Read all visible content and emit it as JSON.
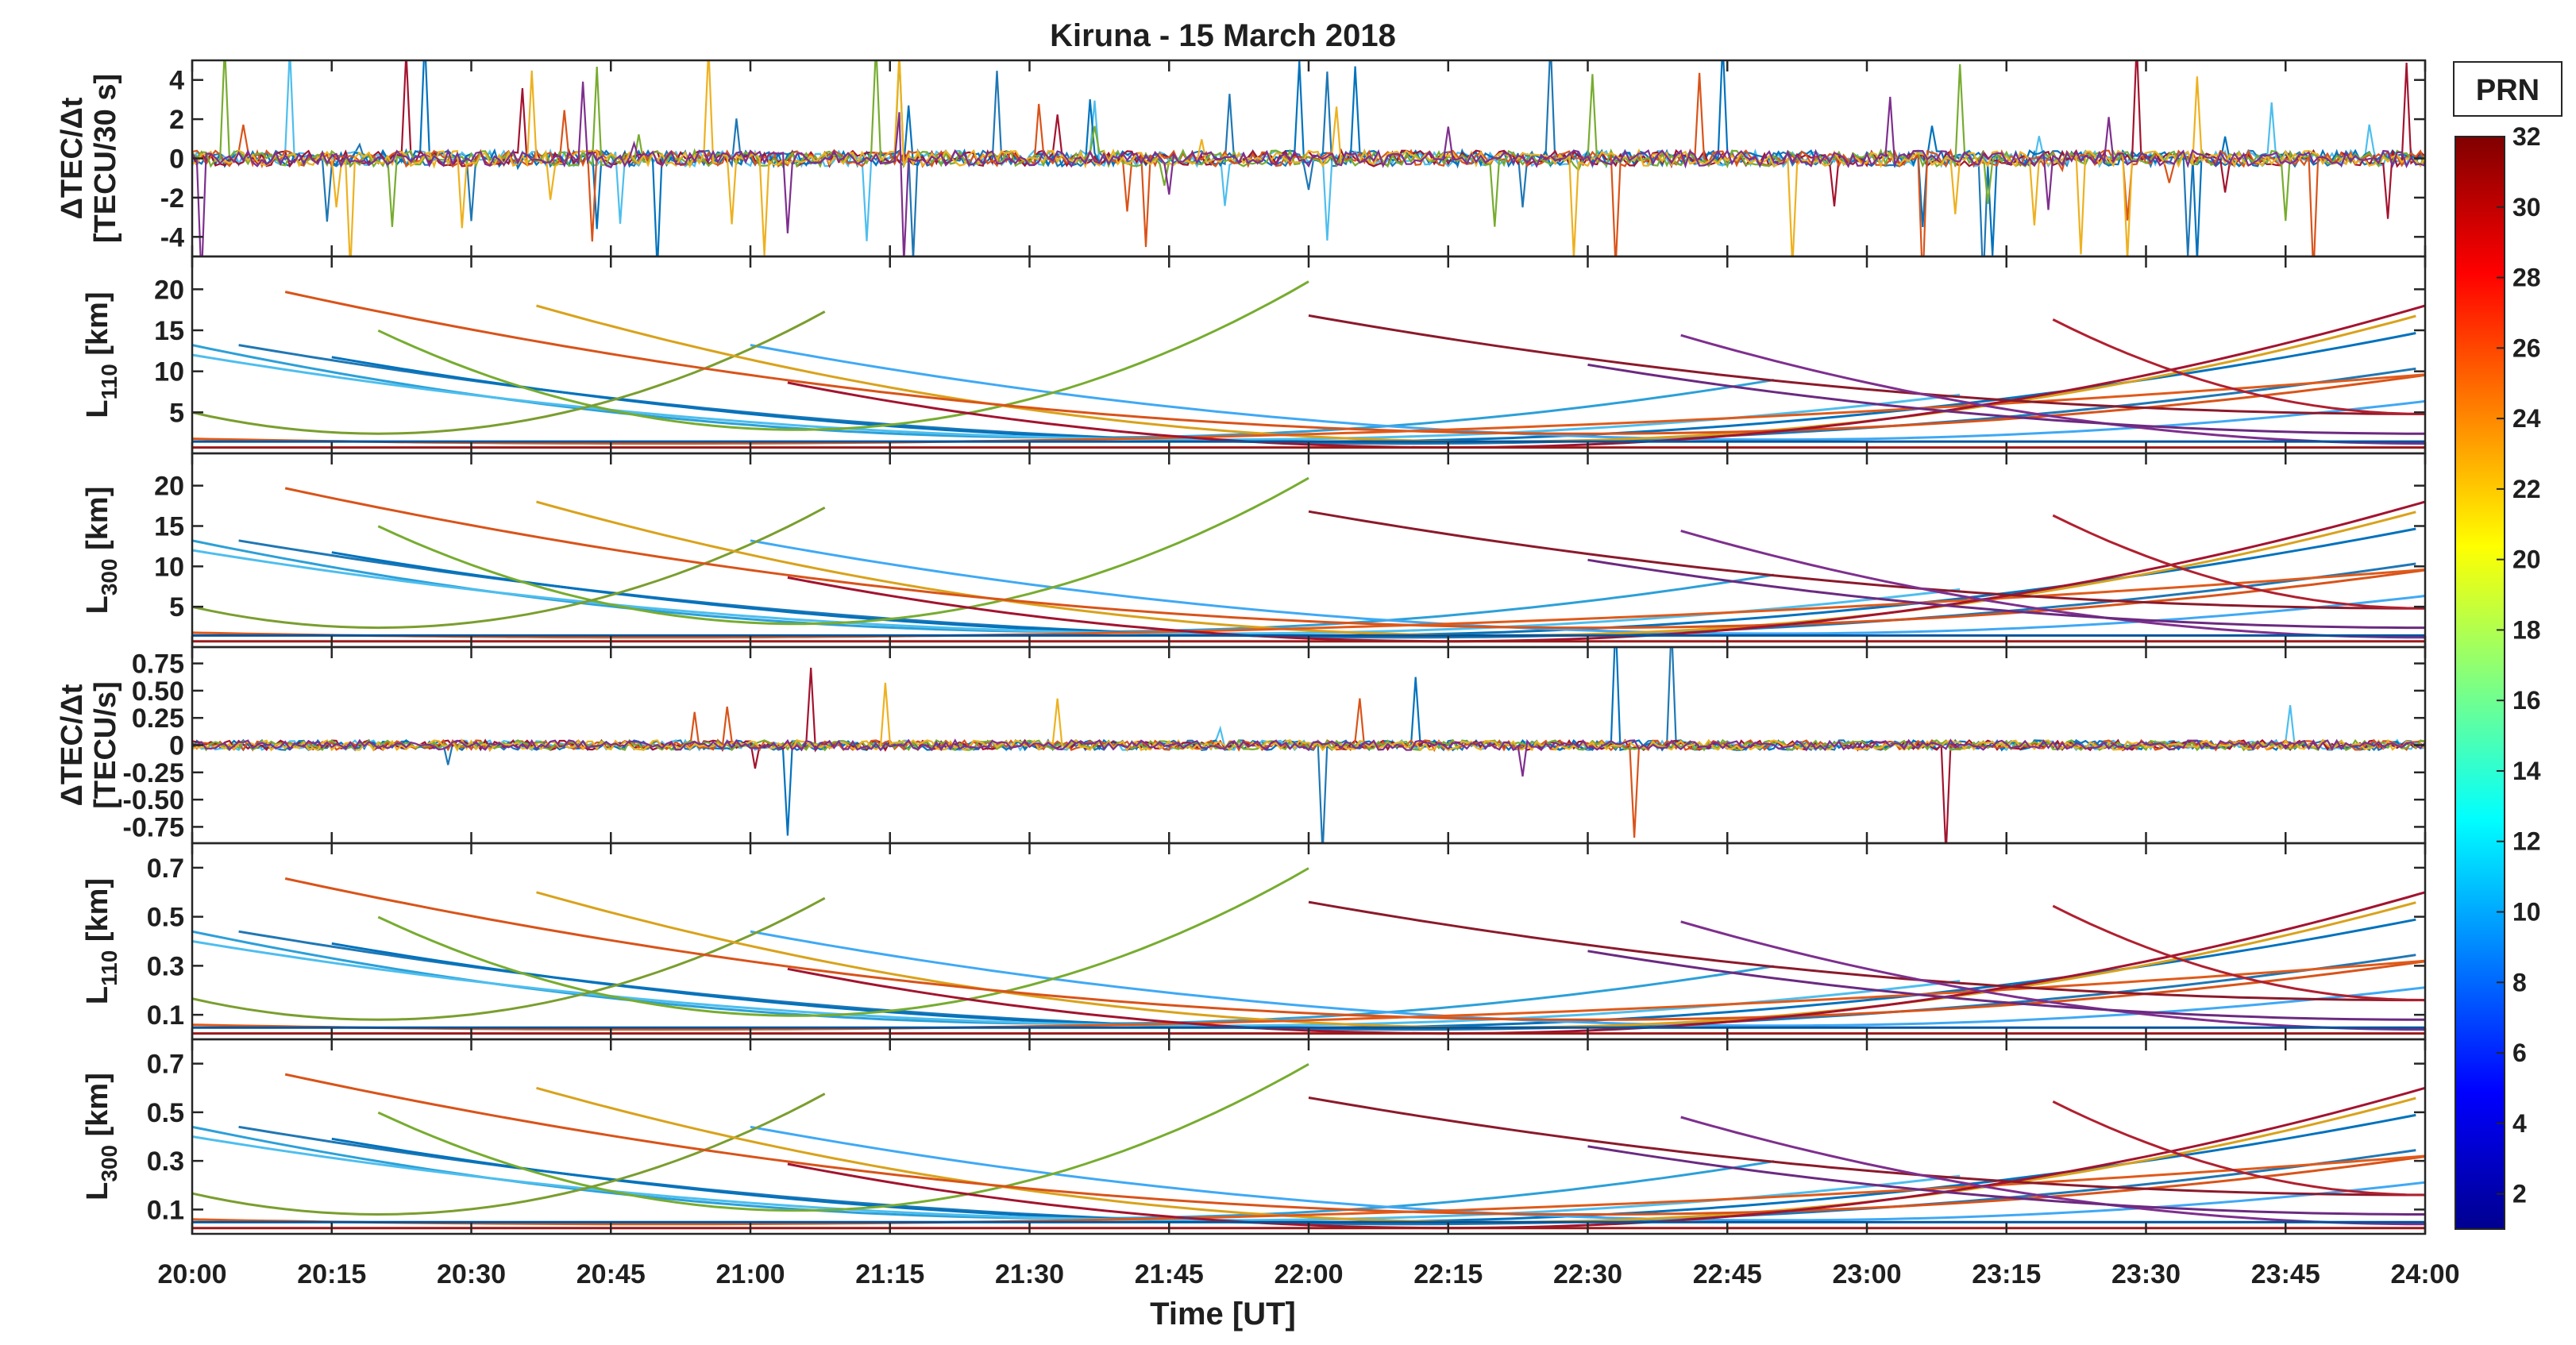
{
  "chart_data": {
    "type": "line",
    "title": "Kiruna - 15 March 2018",
    "xlabel": "Time [UT]",
    "x_ticks": [
      "20:00",
      "20:15",
      "20:30",
      "20:45",
      "21:00",
      "21:15",
      "21:30",
      "21:45",
      "22:00",
      "22:15",
      "22:30",
      "22:45",
      "23:00",
      "23:15",
      "23:30",
      "23:45",
      "24:00"
    ],
    "xlim": [
      0,
      240
    ],
    "x_units": "minutes after 20:00 UT",
    "colorbar": {
      "label": "PRN",
      "range": [
        1,
        32
      ],
      "ticks": [
        "2",
        "4",
        "6",
        "8",
        "10",
        "12",
        "14",
        "16",
        "18",
        "20",
        "22",
        "24",
        "26",
        "28",
        "30",
        "32"
      ],
      "colormap": [
        "#00008f",
        "#0000ff",
        "#0080ff",
        "#00ffff",
        "#80ff80",
        "#ffff00",
        "#ff8000",
        "#ff0000",
        "#800000"
      ]
    },
    "panels": [
      {
        "id": "dtec30",
        "ylabel": [
          "ΔTEC/Δt",
          "[TECU/30 s]"
        ],
        "ylim": [
          -5,
          5
        ],
        "yticks": [
          "4",
          "2",
          "0",
          "-2",
          "-4"
        ],
        "ytick_values": [
          4,
          2,
          0,
          -2,
          -4
        ],
        "kind": "noise"
      },
      {
        "id": "l110_30",
        "ylabel": [
          "L110 [km]"
        ],
        "ylabel_base": "L",
        "ylabel_sub": "110",
        "ylabel_unit": "[km]",
        "ylim": [
          0,
          24
        ],
        "yticks": [
          "20",
          "15",
          "10",
          "5"
        ],
        "ytick_values": [
          20,
          15,
          10,
          5
        ],
        "kind": "arcs"
      },
      {
        "id": "l300_30",
        "ylabel": [
          "L300 [km]"
        ],
        "ylabel_base": "L",
        "ylabel_sub": "300",
        "ylabel_unit": "[km]",
        "ylim": [
          0,
          24
        ],
        "yticks": [
          "20",
          "15",
          "10",
          "5"
        ],
        "ytick_values": [
          20,
          15,
          10,
          5
        ],
        "kind": "arcs"
      },
      {
        "id": "dtec1",
        "ylabel": [
          "ΔTEC/Δt",
          "[TECU/s]"
        ],
        "ylim": [
          -0.9,
          0.9
        ],
        "yticks": [
          "0.75",
          "0.50",
          "0.25",
          "0",
          "-0.25",
          "-0.50",
          "-0.75"
        ],
        "ytick_values": [
          0.75,
          0.5,
          0.25,
          0,
          -0.25,
          -0.5,
          -0.75
        ],
        "kind": "noise"
      },
      {
        "id": "l110_1",
        "ylabel": [
          "L110 [km]"
        ],
        "ylabel_base": "L",
        "ylabel_sub": "110",
        "ylabel_unit": "[km]",
        "ylim": [
          0,
          0.8
        ],
        "yticks": [
          "0.7",
          "0.5",
          "0.3",
          "0.1"
        ],
        "ytick_values": [
          0.7,
          0.5,
          0.3,
          0.1
        ],
        "kind": "arcs"
      },
      {
        "id": "l300_1",
        "ylabel": [
          "L300 [km]"
        ],
        "ylabel_base": "L",
        "ylabel_sub": "300",
        "ylabel_unit": "[km]",
        "ylim": [
          0,
          0.8
        ],
        "yticks": [
          "0.7",
          "0.5",
          "0.3",
          "0.1"
        ],
        "ytick_values": [
          0.7,
          0.5,
          0.3,
          0.1
        ],
        "kind": "arcs"
      }
    ],
    "arc_series": [
      {
        "prn": 2,
        "color": "#1f77b4",
        "shape": "parabola",
        "t_start": 5,
        "t_end": 240,
        "t_min": 130,
        "y_min_frac": 0.05,
        "y_max_frac": 0.55
      },
      {
        "prn": 5,
        "color": "#2ca0d8",
        "shape": "parabola",
        "t_start": 0,
        "t_end": 170,
        "t_min": 95,
        "y_min_frac": 0.08,
        "y_max_frac": 0.55
      },
      {
        "prn": 8,
        "color": "#0072bd",
        "shape": "parabola",
        "t_start": 15,
        "t_end": 240,
        "t_min": 120,
        "y_min_frac": 0.06,
        "y_max_frac": 0.62
      },
      {
        "prn": 12,
        "color": "#4dbeee",
        "shape": "parabola",
        "t_start": 0,
        "t_end": 190,
        "t_min": 110,
        "y_min_frac": 0.07,
        "y_max_frac": 0.5
      },
      {
        "prn": 13,
        "color": "#3fa9f5",
        "shape": "parabola",
        "t_start": 60,
        "t_end": 240,
        "t_min": 170,
        "y_min_frac": 0.07,
        "y_max_frac": 0.55
      },
      {
        "prn": 17,
        "color": "#77ac30",
        "shape": "parabola",
        "t_start": 20,
        "t_end": 121,
        "t_min": 65,
        "y_min_frac": 0.12,
        "y_max_frac": 0.9
      },
      {
        "prn": 18,
        "color": "#7a9e2e",
        "shape": "parabola",
        "t_start": 0,
        "t_end": 68,
        "t_min": 20,
        "y_min_frac": 0.1,
        "y_max_frac": 0.72
      },
      {
        "prn": 22,
        "color": "#d9a21b",
        "shape": "parabola",
        "t_start": 37,
        "t_end": 240,
        "t_min": 140,
        "y_min_frac": 0.06,
        "y_max_frac": 0.75
      },
      {
        "prn": 24,
        "color": "#d95319",
        "shape": "parabola",
        "t_start": 10,
        "t_end": 240,
        "t_min": 150,
        "y_min_frac": 0.1,
        "y_max_frac": 0.82
      },
      {
        "prn": 26,
        "color": "#e05a1a",
        "shape": "parabola",
        "t_start": 0,
        "t_end": 240,
        "t_min": 50,
        "y_min_frac": 0.05,
        "y_max_frac": 0.4
      },
      {
        "prn": 28,
        "color": "#a2142f",
        "shape": "parabola",
        "t_start": 64,
        "t_end": 240,
        "t_min": 135,
        "y_min_frac": 0.03,
        "y_max_frac": 0.75
      },
      {
        "prn": 29,
        "color": "#8b1a2b",
        "shape": "parabola",
        "t_start": 120,
        "t_end": 240,
        "t_min": 240,
        "y_min_frac": 0.2,
        "y_max_frac": 0.7
      },
      {
        "prn": 30,
        "color": "#b0202f",
        "shape": "parabola",
        "t_start": 200,
        "t_end": 240,
        "t_min": 240,
        "y_min_frac": 0.2,
        "y_max_frac": 0.68
      },
      {
        "prn": 31,
        "color": "#7e2f8e",
        "shape": "parabola",
        "t_start": 160,
        "t_end": 240,
        "t_min": 240,
        "y_min_frac": 0.05,
        "y_max_frac": 0.6
      },
      {
        "prn": 32,
        "color": "#6b2a80",
        "shape": "parabola",
        "t_start": 150,
        "t_end": 240,
        "t_min": 240,
        "y_min_frac": 0.1,
        "y_max_frac": 0.45
      },
      {
        "prn": 7,
        "color": "#00539c",
        "shape": "flat",
        "t_start": 0,
        "t_end": 240,
        "t_min": 120,
        "y_min_frac": 0.06,
        "y_max_frac": 0.06
      },
      {
        "prn": 27,
        "color": "#9b1a1a",
        "shape": "flat",
        "t_start": 0,
        "t_end": 240,
        "t_min": 120,
        "y_min_frac": 0.03,
        "y_max_frac": 0.03
      }
    ],
    "noise_series": [
      "#1f77b4",
      "#4dbeee",
      "#0072bd",
      "#a2142f",
      "#d95319",
      "#77ac30",
      "#edb120",
      "#7e2f8e"
    ]
  }
}
